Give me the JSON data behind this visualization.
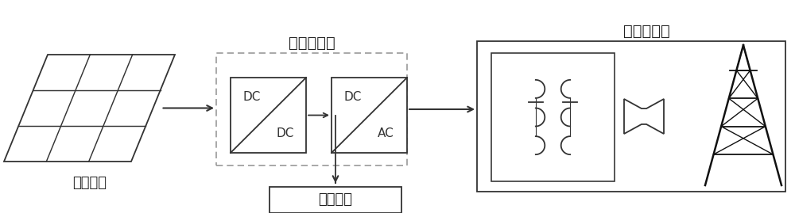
{
  "title_ac_network": "交流配电网",
  "title_inverter": "并网逆变器",
  "label_pv": "光伏阵列",
  "label_load": "交流负载",
  "bg_color": "#ffffff",
  "line_color": "#333333",
  "dashed_color": "#999999",
  "font_size_label": 13,
  "font_size_title": 14,
  "font_size_dc": 11
}
